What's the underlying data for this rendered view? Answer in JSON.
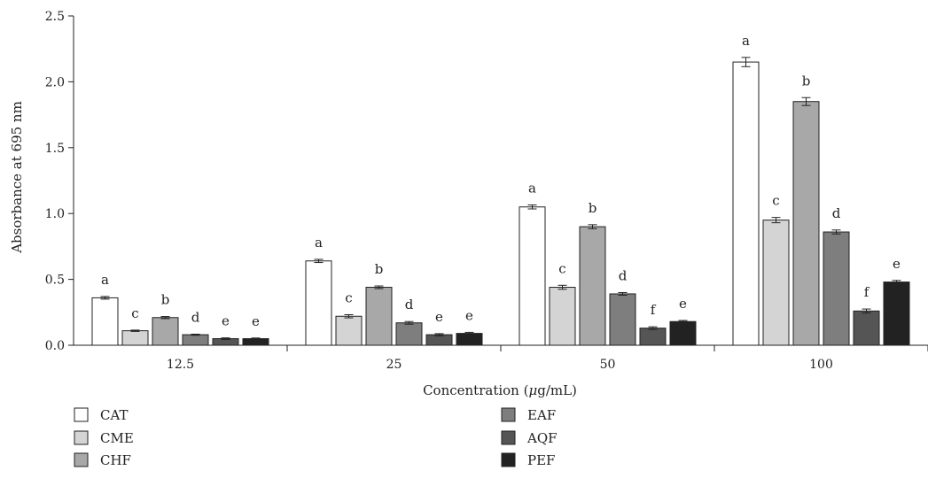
{
  "chart_data": {
    "type": "bar",
    "xlabel_prefix": "Concentration (",
    "xlabel_mu": "μ",
    "xlabel_suffix": "g/mL)",
    "ylabel": "Absorbance at 695 nm",
    "ylim": [
      0,
      2.5
    ],
    "yticks": [
      "0.0",
      "0.5",
      "1.0",
      "1.5",
      "2.0",
      "2.5"
    ],
    "categories": [
      "12.5",
      "25",
      "50",
      "100"
    ],
    "legend_placement": "bottom-left, two columns",
    "series": [
      {
        "name": "CAT",
        "color": "#ffffff",
        "values": [
          0.36,
          0.64,
          1.05,
          2.15
        ],
        "errors": [
          0.01,
          0.012,
          0.015,
          0.035
        ],
        "labels": [
          "a",
          "a",
          "a",
          "a"
        ]
      },
      {
        "name": "CME",
        "color": "#d4d4d4",
        "values": [
          0.11,
          0.22,
          0.44,
          0.95
        ],
        "errors": [
          0.005,
          0.012,
          0.015,
          0.02
        ],
        "labels": [
          "c",
          "c",
          "c",
          "c"
        ]
      },
      {
        "name": "CHF",
        "color": "#a8a8a8",
        "values": [
          0.21,
          0.44,
          0.9,
          1.85
        ],
        "errors": [
          0.008,
          0.01,
          0.015,
          0.03
        ],
        "labels": [
          "b",
          "b",
          "b",
          "b"
        ]
      },
      {
        "name": "EAF",
        "color": "#7e7e7e",
        "values": [
          0.08,
          0.17,
          0.39,
          0.86
        ],
        "errors": [
          0.004,
          0.01,
          0.01,
          0.015
        ],
        "labels": [
          "d",
          "d",
          "d",
          "d"
        ]
      },
      {
        "name": "AQF",
        "color": "#555555",
        "values": [
          0.05,
          0.08,
          0.13,
          0.26
        ],
        "errors": [
          0.006,
          0.008,
          0.01,
          0.015
        ],
        "labels": [
          "e",
          "e",
          "f",
          "f"
        ]
      },
      {
        "name": "PEF",
        "color": "#222222",
        "values": [
          0.05,
          0.09,
          0.18,
          0.48
        ],
        "errors": [
          0.005,
          0.008,
          0.008,
          0.012
        ],
        "labels": [
          "e",
          "e",
          "e",
          "e"
        ]
      }
    ]
  }
}
